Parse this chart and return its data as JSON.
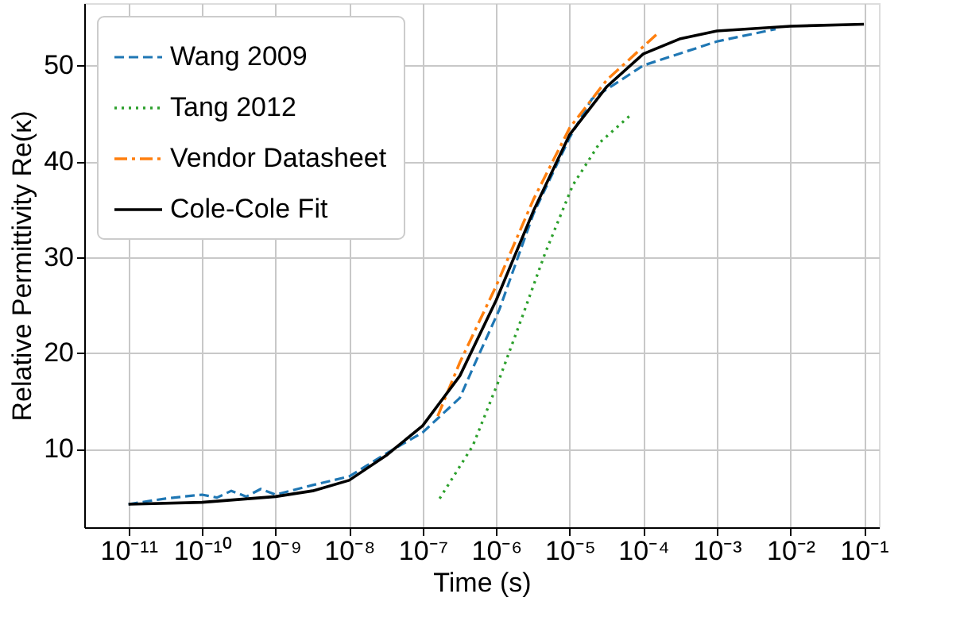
{
  "chart_data": {
    "type": "line",
    "xlabel": "Time (s)",
    "ylabel": "Relative Permittivity Re(κ)",
    "log": "x",
    "grid": true,
    "legend": "top left",
    "xlim": [
      2.5e-12,
      0.16
    ],
    "ylim": [
      1.8,
      56.5
    ],
    "xticks": [
      {
        "value": 1e-11,
        "label": "10⁻¹¹"
      },
      {
        "value": 1e-10,
        "label": "10⁻¹⁰"
      },
      {
        "value": 1e-09,
        "label": "10⁻⁹"
      },
      {
        "value": 1e-08,
        "label": "10⁻⁸"
      },
      {
        "value": 1e-07,
        "label": "10⁻⁷"
      },
      {
        "value": 1e-06,
        "label": "10⁻⁶"
      },
      {
        "value": 1e-05,
        "label": "10⁻⁵"
      },
      {
        "value": 0.0001,
        "label": "10⁻⁴"
      },
      {
        "value": 0.001,
        "label": "10⁻³"
      },
      {
        "value": 0.01,
        "label": "10⁻²"
      },
      {
        "value": 0.1,
        "label": "10⁻¹"
      }
    ],
    "yticks": [
      10,
      20,
      30,
      40,
      50
    ],
    "series": [
      {
        "name": "Wang 2009",
        "color": "#1f77b4",
        "line_style": "dashed",
        "x": [
          1e-11,
          3.2e-11,
          1e-10,
          1.6e-10,
          2.5e-10,
          4e-10,
          6.3e-10,
          1e-09,
          3.2e-09,
          1e-08,
          3.2e-08,
          1e-07,
          3.2e-07,
          5e-07,
          1.1e-06,
          3.2e-06,
          1e-05,
          2e-05,
          0.0001,
          0.001,
          0.0063
        ],
        "values": [
          4.2,
          4.8,
          5.2,
          4.9,
          5.6,
          5.0,
          5.8,
          5.2,
          6.2,
          7.1,
          9.5,
          11.7,
          15.3,
          18.7,
          24.5,
          34.5,
          42.5,
          46.5,
          50.0,
          52.5,
          53.8
        ]
      },
      {
        "name": "Tang 2012",
        "color": "#2ca02c",
        "line_style": "dotted",
        "x": [
          1.7e-07,
          4.8e-07,
          1.07e-06,
          2.24e-06,
          4.57e-06,
          1.1e-05,
          2.6e-05,
          6.9e-05
        ],
        "values": [
          4.8,
          10.3,
          17.0,
          23.7,
          30.3,
          37.5,
          42.0,
          44.9
        ]
      },
      {
        "name": "Vendor Datasheet",
        "color": "#ff7f0e",
        "line_style": "dashdot",
        "x": [
          1.6e-07,
          3.2e-07,
          1e-06,
          3.2e-06,
          1e-05,
          3.2e-05,
          0.00016
        ],
        "values": [
          13.4,
          19.0,
          27.0,
          36.0,
          43.5,
          48.5,
          53.4
        ]
      },
      {
        "name": "Cole-Cole Fit",
        "color": "#000000",
        "line_style": "solid",
        "x": [
          1e-11,
          1e-10,
          1e-09,
          3.2e-09,
          1e-08,
          3.2e-08,
          1e-07,
          3.2e-07,
          1e-06,
          3.2e-06,
          1e-05,
          3.2e-05,
          0.0001,
          0.00032,
          0.001,
          0.01,
          0.1
        ],
        "values": [
          4.2,
          4.4,
          5.0,
          5.6,
          6.7,
          9.3,
          12.4,
          17.6,
          25.5,
          34.8,
          42.8,
          47.8,
          51.2,
          52.8,
          53.6,
          54.1,
          54.3
        ]
      }
    ]
  }
}
